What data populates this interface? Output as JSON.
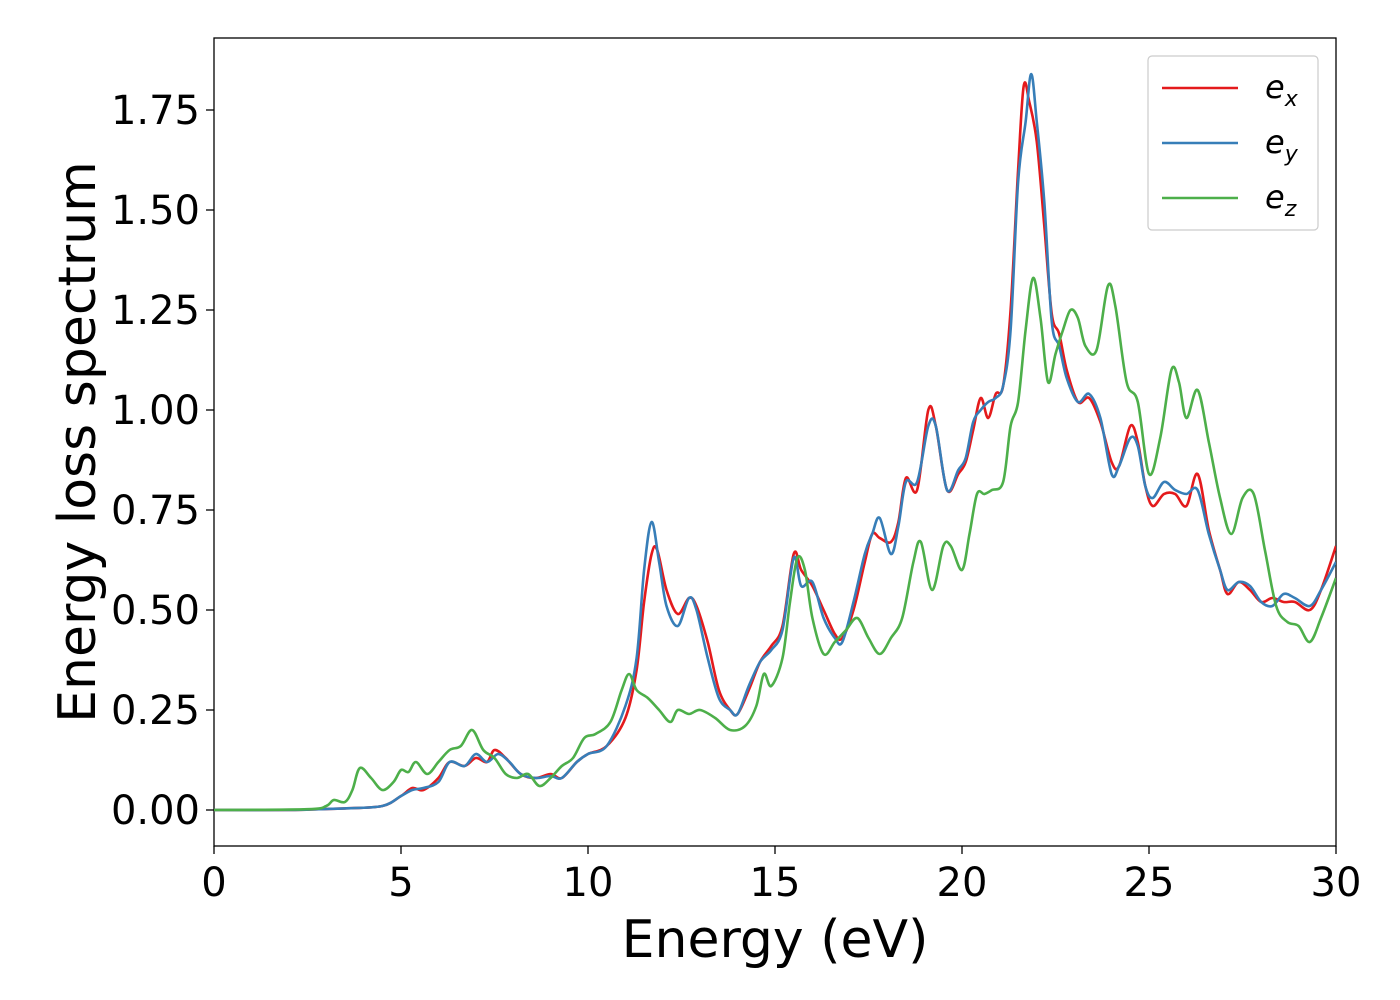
{
  "chart_data": {
    "type": "line",
    "xlabel": "Energy (eV)",
    "ylabel": "Energy loss spectrum",
    "xlim": [
      0,
      30
    ],
    "ylim": [
      -0.09,
      1.93
    ],
    "xticks": [
      "0",
      "5",
      "10",
      "15",
      "20",
      "25",
      "30"
    ],
    "xtick_values": [
      0,
      5,
      10,
      15,
      20,
      25,
      30
    ],
    "yticks": [
      "0.00",
      "0.25",
      "0.50",
      "0.75",
      "1.00",
      "1.25",
      "1.50",
      "1.75"
    ],
    "ytick_values": [
      0,
      0.25,
      0.5,
      0.75,
      1.0,
      1.25,
      1.5,
      1.75
    ],
    "grid": false,
    "legend_position": "top-right",
    "series": [
      {
        "name": "e",
        "subscript": "x",
        "color": "#e41a1c",
        "points": [
          [
            0,
            0
          ],
          [
            2,
            0
          ],
          [
            2.8,
            0.002
          ],
          [
            3.5,
            0.004
          ],
          [
            4.5,
            0.01
          ],
          [
            5,
            0.035
          ],
          [
            5.3,
            0.055
          ],
          [
            5.6,
            0.05
          ],
          [
            6,
            0.08
          ],
          [
            6.3,
            0.12
          ],
          [
            6.7,
            0.11
          ],
          [
            7,
            0.13
          ],
          [
            7.3,
            0.12
          ],
          [
            7.5,
            0.15
          ],
          [
            7.8,
            0.13
          ],
          [
            8.2,
            0.09
          ],
          [
            8.6,
            0.08
          ],
          [
            9,
            0.09
          ],
          [
            9.3,
            0.08
          ],
          [
            9.7,
            0.12
          ],
          [
            10,
            0.14
          ],
          [
            10.5,
            0.16
          ],
          [
            11,
            0.23
          ],
          [
            11.3,
            0.35
          ],
          [
            11.5,
            0.52
          ],
          [
            11.7,
            0.64
          ],
          [
            11.85,
            0.65
          ],
          [
            12.1,
            0.55
          ],
          [
            12.4,
            0.49
          ],
          [
            12.7,
            0.53
          ],
          [
            12.9,
            0.51
          ],
          [
            13.2,
            0.42
          ],
          [
            13.5,
            0.3
          ],
          [
            13.8,
            0.25
          ],
          [
            14,
            0.24
          ],
          [
            14.3,
            0.3
          ],
          [
            14.6,
            0.37
          ],
          [
            14.9,
            0.41
          ],
          [
            15.2,
            0.46
          ],
          [
            15.5,
            0.64
          ],
          [
            15.7,
            0.6
          ],
          [
            16,
            0.56
          ],
          [
            16.3,
            0.5
          ],
          [
            16.6,
            0.44
          ],
          [
            16.8,
            0.43
          ],
          [
            17.1,
            0.5
          ],
          [
            17.4,
            0.62
          ],
          [
            17.6,
            0.69
          ],
          [
            17.8,
            0.68
          ],
          [
            18.1,
            0.67
          ],
          [
            18.3,
            0.72
          ],
          [
            18.5,
            0.83
          ],
          [
            18.8,
            0.8
          ],
          [
            19.1,
            1.0
          ],
          [
            19.3,
            0.96
          ],
          [
            19.6,
            0.8
          ],
          [
            19.9,
            0.84
          ],
          [
            20.1,
            0.87
          ],
          [
            20.3,
            0.95
          ],
          [
            20.5,
            1.03
          ],
          [
            20.7,
            0.98
          ],
          [
            20.9,
            1.04
          ],
          [
            21.1,
            1.06
          ],
          [
            21.3,
            1.25
          ],
          [
            21.5,
            1.6
          ],
          [
            21.65,
            1.81
          ],
          [
            21.8,
            1.77
          ],
          [
            22,
            1.67
          ],
          [
            22.2,
            1.46
          ],
          [
            22.4,
            1.24
          ],
          [
            22.6,
            1.19
          ],
          [
            22.8,
            1.1
          ],
          [
            23.1,
            1.02
          ],
          [
            23.4,
            1.03
          ],
          [
            23.7,
            0.97
          ],
          [
            24,
            0.87
          ],
          [
            24.2,
            0.86
          ],
          [
            24.5,
            0.96
          ],
          [
            24.7,
            0.92
          ],
          [
            24.9,
            0.81
          ],
          [
            25.1,
            0.76
          ],
          [
            25.4,
            0.79
          ],
          [
            25.7,
            0.79
          ],
          [
            26,
            0.76
          ],
          [
            26.3,
            0.84
          ],
          [
            26.6,
            0.7
          ],
          [
            26.9,
            0.6
          ],
          [
            27.1,
            0.54
          ],
          [
            27.4,
            0.57
          ],
          [
            27.7,
            0.55
          ],
          [
            28,
            0.52
          ],
          [
            28.3,
            0.53
          ],
          [
            28.6,
            0.52
          ],
          [
            28.9,
            0.52
          ],
          [
            29.3,
            0.5
          ],
          [
            29.6,
            0.55
          ],
          [
            30,
            0.66
          ]
        ]
      },
      {
        "name": "e",
        "subscript": "y",
        "color": "#377eb8",
        "points": [
          [
            0,
            0
          ],
          [
            2,
            0
          ],
          [
            2.8,
            0.002
          ],
          [
            3.5,
            0.004
          ],
          [
            4.5,
            0.01
          ],
          [
            5,
            0.035
          ],
          [
            5.3,
            0.05
          ],
          [
            5.6,
            0.055
          ],
          [
            6,
            0.07
          ],
          [
            6.3,
            0.12
          ],
          [
            6.7,
            0.11
          ],
          [
            7,
            0.14
          ],
          [
            7.3,
            0.12
          ],
          [
            7.6,
            0.14
          ],
          [
            7.9,
            0.12
          ],
          [
            8.2,
            0.09
          ],
          [
            8.6,
            0.08
          ],
          [
            9,
            0.085
          ],
          [
            9.3,
            0.08
          ],
          [
            9.7,
            0.12
          ],
          [
            10,
            0.14
          ],
          [
            10.5,
            0.16
          ],
          [
            11,
            0.26
          ],
          [
            11.3,
            0.38
          ],
          [
            11.5,
            0.6
          ],
          [
            11.7,
            0.72
          ],
          [
            11.9,
            0.62
          ],
          [
            12.1,
            0.51
          ],
          [
            12.4,
            0.46
          ],
          [
            12.7,
            0.53
          ],
          [
            12.9,
            0.5
          ],
          [
            13.2,
            0.38
          ],
          [
            13.5,
            0.28
          ],
          [
            13.8,
            0.25
          ],
          [
            14,
            0.24
          ],
          [
            14.3,
            0.31
          ],
          [
            14.6,
            0.37
          ],
          [
            14.9,
            0.4
          ],
          [
            15.2,
            0.45
          ],
          [
            15.5,
            0.63
          ],
          [
            15.7,
            0.56
          ],
          [
            16,
            0.57
          ],
          [
            16.3,
            0.48
          ],
          [
            16.6,
            0.43
          ],
          [
            16.8,
            0.42
          ],
          [
            17.1,
            0.52
          ],
          [
            17.4,
            0.64
          ],
          [
            17.6,
            0.69
          ],
          [
            17.8,
            0.73
          ],
          [
            18.1,
            0.64
          ],
          [
            18.3,
            0.71
          ],
          [
            18.5,
            0.82
          ],
          [
            18.8,
            0.82
          ],
          [
            19.1,
            0.96
          ],
          [
            19.3,
            0.96
          ],
          [
            19.6,
            0.8
          ],
          [
            19.9,
            0.85
          ],
          [
            20.1,
            0.88
          ],
          [
            20.3,
            0.97
          ],
          [
            20.5,
            1.0
          ],
          [
            20.7,
            1.02
          ],
          [
            20.9,
            1.03
          ],
          [
            21.1,
            1.06
          ],
          [
            21.3,
            1.2
          ],
          [
            21.5,
            1.57
          ],
          [
            21.7,
            1.72
          ],
          [
            21.85,
            1.84
          ],
          [
            22,
            1.72
          ],
          [
            22.2,
            1.52
          ],
          [
            22.4,
            1.22
          ],
          [
            22.6,
            1.16
          ],
          [
            22.8,
            1.08
          ],
          [
            23.1,
            1.02
          ],
          [
            23.4,
            1.04
          ],
          [
            23.7,
            0.98
          ],
          [
            24,
            0.84
          ],
          [
            24.2,
            0.86
          ],
          [
            24.5,
            0.93
          ],
          [
            24.7,
            0.91
          ],
          [
            24.9,
            0.81
          ],
          [
            25.1,
            0.78
          ],
          [
            25.4,
            0.82
          ],
          [
            25.7,
            0.8
          ],
          [
            26,
            0.79
          ],
          [
            26.3,
            0.8
          ],
          [
            26.6,
            0.69
          ],
          [
            26.9,
            0.6
          ],
          [
            27.1,
            0.55
          ],
          [
            27.4,
            0.57
          ],
          [
            27.7,
            0.56
          ],
          [
            28,
            0.52
          ],
          [
            28.3,
            0.51
          ],
          [
            28.6,
            0.54
          ],
          [
            28.9,
            0.53
          ],
          [
            29.3,
            0.51
          ],
          [
            29.6,
            0.55
          ],
          [
            30,
            0.62
          ]
        ]
      },
      {
        "name": "e",
        "subscript": "z",
        "color": "#4daf4a",
        "points": [
          [
            0,
            0
          ],
          [
            2.5,
            0.002
          ],
          [
            3,
            0.01
          ],
          [
            3.2,
            0.025
          ],
          [
            3.5,
            0.02
          ],
          [
            3.7,
            0.05
          ],
          [
            3.9,
            0.105
          ],
          [
            4.2,
            0.08
          ],
          [
            4.5,
            0.05
          ],
          [
            4.8,
            0.07
          ],
          [
            5,
            0.1
          ],
          [
            5.2,
            0.095
          ],
          [
            5.4,
            0.12
          ],
          [
            5.7,
            0.09
          ],
          [
            6,
            0.12
          ],
          [
            6.3,
            0.15
          ],
          [
            6.6,
            0.16
          ],
          [
            6.9,
            0.2
          ],
          [
            7.2,
            0.15
          ],
          [
            7.5,
            0.13
          ],
          [
            7.8,
            0.09
          ],
          [
            8.1,
            0.08
          ],
          [
            8.4,
            0.09
          ],
          [
            8.7,
            0.06
          ],
          [
            9,
            0.08
          ],
          [
            9.3,
            0.11
          ],
          [
            9.6,
            0.13
          ],
          [
            9.9,
            0.18
          ],
          [
            10.2,
            0.19
          ],
          [
            10.6,
            0.22
          ],
          [
            10.9,
            0.3
          ],
          [
            11.1,
            0.34
          ],
          [
            11.3,
            0.3
          ],
          [
            11.6,
            0.28
          ],
          [
            11.9,
            0.25
          ],
          [
            12.2,
            0.22
          ],
          [
            12.4,
            0.25
          ],
          [
            12.7,
            0.24
          ],
          [
            13,
            0.25
          ],
          [
            13.4,
            0.23
          ],
          [
            13.8,
            0.2
          ],
          [
            14.2,
            0.21
          ],
          [
            14.5,
            0.26
          ],
          [
            14.7,
            0.34
          ],
          [
            14.9,
            0.31
          ],
          [
            15.2,
            0.38
          ],
          [
            15.4,
            0.52
          ],
          [
            15.6,
            0.63
          ],
          [
            15.8,
            0.6
          ],
          [
            16,
            0.48
          ],
          [
            16.3,
            0.39
          ],
          [
            16.6,
            0.42
          ],
          [
            16.9,
            0.45
          ],
          [
            17.2,
            0.48
          ],
          [
            17.5,
            0.43
          ],
          [
            17.8,
            0.39
          ],
          [
            18.1,
            0.43
          ],
          [
            18.4,
            0.48
          ],
          [
            18.7,
            0.62
          ],
          [
            18.9,
            0.67
          ],
          [
            19.2,
            0.55
          ],
          [
            19.5,
            0.66
          ],
          [
            19.7,
            0.66
          ],
          [
            20,
            0.6
          ],
          [
            20.2,
            0.69
          ],
          [
            20.4,
            0.79
          ],
          [
            20.6,
            0.79
          ],
          [
            20.8,
            0.8
          ],
          [
            21.1,
            0.82
          ],
          [
            21.3,
            0.96
          ],
          [
            21.5,
            1.02
          ],
          [
            21.7,
            1.2
          ],
          [
            21.9,
            1.33
          ],
          [
            22.1,
            1.23
          ],
          [
            22.3,
            1.07
          ],
          [
            22.5,
            1.14
          ],
          [
            22.7,
            1.2
          ],
          [
            22.9,
            1.25
          ],
          [
            23.1,
            1.23
          ],
          [
            23.3,
            1.16
          ],
          [
            23.6,
            1.15
          ],
          [
            23.9,
            1.31
          ],
          [
            24.1,
            1.26
          ],
          [
            24.4,
            1.07
          ],
          [
            24.7,
            1.02
          ],
          [
            25,
            0.84
          ],
          [
            25.3,
            0.93
          ],
          [
            25.6,
            1.1
          ],
          [
            25.8,
            1.07
          ],
          [
            26,
            0.98
          ],
          [
            26.3,
            1.05
          ],
          [
            26.6,
            0.92
          ],
          [
            26.9,
            0.78
          ],
          [
            27.2,
            0.69
          ],
          [
            27.5,
            0.78
          ],
          [
            27.8,
            0.79
          ],
          [
            28.1,
            0.65
          ],
          [
            28.4,
            0.51
          ],
          [
            28.7,
            0.47
          ],
          [
            29,
            0.46
          ],
          [
            29.3,
            0.42
          ],
          [
            29.6,
            0.48
          ],
          [
            30,
            0.58
          ]
        ]
      }
    ]
  }
}
